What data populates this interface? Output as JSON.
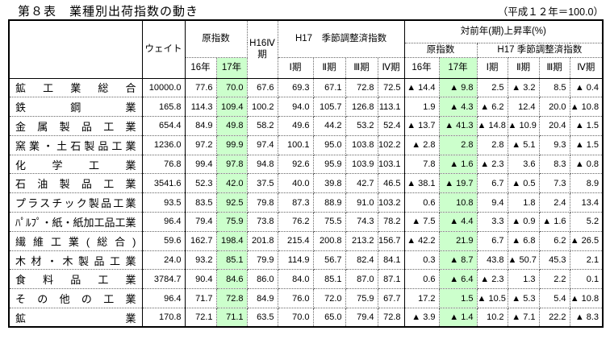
{
  "title": "第８表　業種別出荷指数の動き",
  "scale_note": "（平成１２年＝100.0）",
  "colors": {
    "highlight_green": "#ccffcc",
    "border": "#000000"
  },
  "table": {
    "header": {
      "weight": "ウェイト",
      "original_index": "原指数",
      "h16_q4": "H16Ⅳ期",
      "h17_sa": "H17　季節調整済指数",
      "yoy": "対前年(期)上昇率(%)",
      "yoy_original": "原指数",
      "yoy_h17_sa": "H17 季節調整済指数",
      "year16": "16年",
      "year17": "17年",
      "q1": "Ⅰ期",
      "q2": "Ⅱ期",
      "q3": "Ⅲ期",
      "q4": "Ⅳ期"
    },
    "rows": [
      {
        "name": "鉱工業総合",
        "cells": [
          "10000.0",
          "77.6",
          "70.0",
          "67.6",
          "69.3",
          "67.1",
          "72.8",
          "72.5",
          "▲ 14.4",
          "▲ 9.8",
          "2.5",
          "▲ 3.2",
          "8.5",
          "▲ 0.4"
        ]
      },
      {
        "name": "鉄鋼業",
        "cells": [
          "165.8",
          "114.3",
          "109.4",
          "100.2",
          "94.0",
          "105.7",
          "126.8",
          "113.1",
          "1.9",
          "▲ 4.3",
          "▲ 6.2",
          "12.4",
          "20.0",
          "▲ 10.8"
        ]
      },
      {
        "name": "金属製品工業",
        "cells": [
          "654.4",
          "84.9",
          "49.8",
          "58.2",
          "49.6",
          "44.2",
          "53.2",
          "52.4",
          "▲ 13.7",
          "▲ 41.3",
          "▲ 14.8",
          "▲ 10.9",
          "20.4",
          "▲ 1.5"
        ]
      },
      {
        "name": "窯業・土石製品工業",
        "cells": [
          "1236.0",
          "97.2",
          "99.9",
          "97.4",
          "100.1",
          "95.0",
          "103.8",
          "102.2",
          "▲ 2.8",
          "2.8",
          "2.8",
          "▲ 5.1",
          "9.3",
          "▲ 1.5"
        ]
      },
      {
        "name": "化学工業",
        "cells": [
          "76.8",
          "99.4",
          "97.8",
          "94.8",
          "92.6",
          "95.9",
          "103.9",
          "103.1",
          "7.8",
          "▲ 1.6",
          "▲ 2.3",
          "3.6",
          "8.3",
          "▲ 0.8"
        ]
      },
      {
        "name": "石油製品工業",
        "cells": [
          "3541.6",
          "52.3",
          "42.0",
          "37.5",
          "40.0",
          "39.8",
          "42.7",
          "46.5",
          "▲ 38.1",
          "▲ 19.7",
          "6.7",
          "▲ 0.5",
          "7.3",
          "8.9"
        ]
      },
      {
        "name": "プラスチック製品工業",
        "cells": [
          "93.5",
          "83.5",
          "92.5",
          "79.8",
          "87.3",
          "88.9",
          "91.0",
          "103.2",
          "0.6",
          "10.8",
          "9.4",
          "1.8",
          "2.4",
          "13.4"
        ]
      },
      {
        "name": "ﾊﾟﾙﾌﾟ・紙・紙加工品工業",
        "cells": [
          "96.4",
          "79.4",
          "75.9",
          "73.8",
          "76.2",
          "75.5",
          "74.3",
          "78.2",
          "▲ 7.5",
          "▲ 4.4",
          "3.3",
          "▲ 0.9",
          "▲ 1.6",
          "5.2"
        ]
      },
      {
        "name": "繊維工業(総合)",
        "cells": [
          "59.6",
          "162.7",
          "198.4",
          "201.8",
          "215.4",
          "200.8",
          "213.2",
          "156.7",
          "▲ 42.2",
          "21.9",
          "6.7",
          "▲ 6.8",
          "6.2",
          "▲ 26.5"
        ]
      },
      {
        "name": "木材・木製品工業",
        "cells": [
          "24.0",
          "93.2",
          "85.1",
          "79.9",
          "114.9",
          "56.7",
          "82.4",
          "84.1",
          "0.3",
          "▲ 8.7",
          "43.8",
          "▲ 50.7",
          "45.3",
          "2.1"
        ]
      },
      {
        "name": "食料品工業",
        "cells": [
          "3784.7",
          "90.4",
          "84.6",
          "86.0",
          "84.0",
          "85.1",
          "87.0",
          "87.1",
          "0.6",
          "▲ 6.4",
          "▲ 2.3",
          "1.3",
          "2.2",
          "0.1"
        ]
      },
      {
        "name": "その他の工業",
        "cells": [
          "96.4",
          "71.7",
          "72.8",
          "84.9",
          "76.0",
          "72.0",
          "75.9",
          "67.7",
          "17.2",
          "1.5",
          "▲ 10.5",
          "▲ 5.3",
          "5.4",
          "▲ 10.8"
        ]
      },
      {
        "name": "鉱業",
        "cells": [
          "170.8",
          "72.1",
          "71.1",
          "63.5",
          "70.0",
          "65.0",
          "79.4",
          "72.8",
          "▲ 3.9",
          "▲ 1.4",
          "10.2",
          "▲ 7.1",
          "22.2",
          "▲ 8.3"
        ]
      }
    ]
  }
}
